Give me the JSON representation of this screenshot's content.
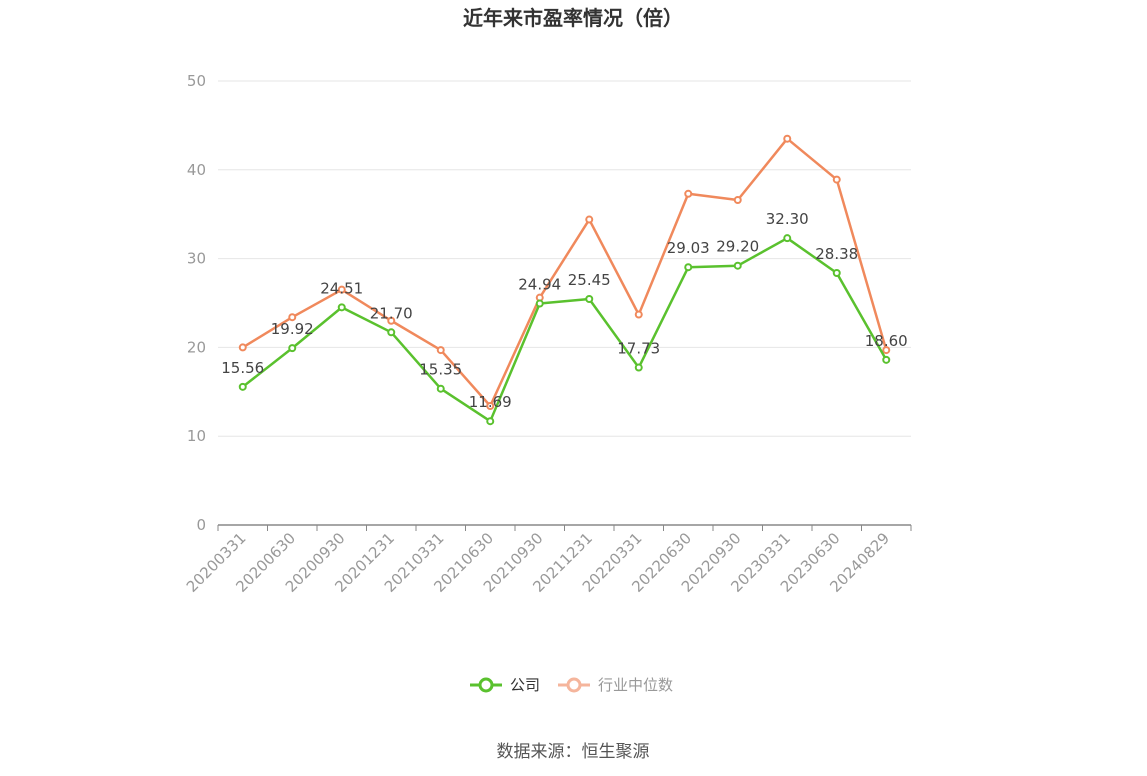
{
  "chart_data": {
    "type": "line",
    "title": "近年来市盈率情况（倍）",
    "x": [
      "20200331",
      "20200630",
      "20200930",
      "20201231",
      "20210331",
      "20210630",
      "20210930",
      "20211231",
      "20220331",
      "20220630",
      "20220930",
      "20230331",
      "20230630",
      "20240829"
    ],
    "ylim": [
      0,
      50
    ],
    "yticks": [
      0,
      10,
      20,
      30,
      40,
      50
    ],
    "grid": true,
    "legend_position": "bottom-center",
    "series": [
      {
        "name": "公司",
        "color": "#5ac12e",
        "values": [
          15.56,
          19.92,
          24.51,
          21.7,
          15.35,
          11.69,
          24.94,
          25.45,
          17.73,
          29.03,
          29.2,
          32.3,
          28.38,
          18.6
        ],
        "labels": [
          "15.56",
          "19.92",
          "24.51",
          "21.70",
          "15.35",
          "11.69",
          "24.94",
          "25.45",
          "17.73",
          "29.03",
          "29.20",
          "32.30",
          "28.38",
          "18.60"
        ]
      },
      {
        "name": "行业中位数",
        "color": "#f0895c",
        "values": [
          20.0,
          23.4,
          26.5,
          23.0,
          19.7,
          13.4,
          25.6,
          34.4,
          23.7,
          37.3,
          36.6,
          43.5,
          38.9,
          19.7
        ]
      }
    ],
    "legend_colors": {
      "公司": "#5ac12e",
      "行业中位数": "#f5b59c"
    },
    "source": "数据来源：恒生聚源"
  }
}
